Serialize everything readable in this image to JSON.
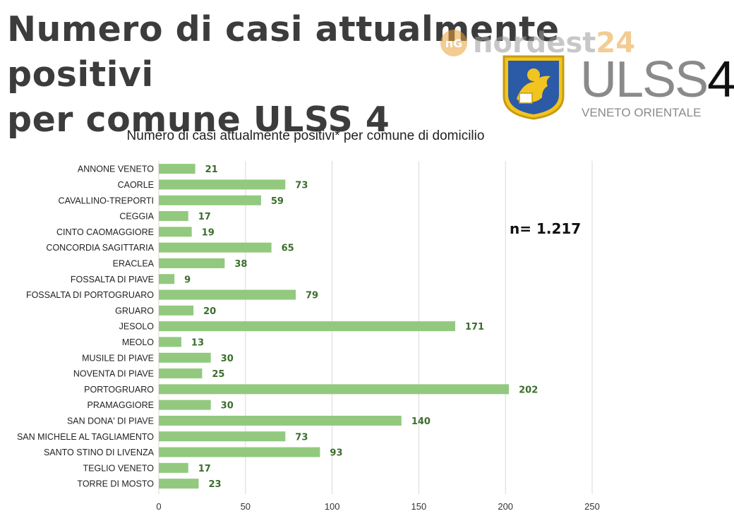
{
  "header": {
    "title_line1": "Numero di casi attualmente positivi",
    "title_line2": "per comune ULSS 4"
  },
  "watermark": {
    "icon": "nordest-logo-icon",
    "text": "nordest",
    "number": "24"
  },
  "logo": {
    "name": "ULSS",
    "number": "4",
    "subtitle": "VENETO ORIENTALE",
    "icon": "lion-of-saint-mark-shield"
  },
  "colors": {
    "bar": "#92c97f",
    "value_label": "#3b6e2c",
    "grid": "#d9d9d9",
    "title": "#3c3c3c"
  },
  "chart_data": {
    "type": "bar",
    "orientation": "horizontal",
    "title": "Numero di casi attualmente positivi* per comune di domicilio",
    "annotation": "n= 1.217",
    "xlim": [
      0,
      250
    ],
    "xticks": [
      0,
      50,
      100,
      150,
      200,
      250
    ],
    "grid": true,
    "categories": [
      "ANNONE VENETO",
      "CAORLE",
      "CAVALLINO-TREPORTI",
      "CEGGIA",
      "CINTO CAOMAGGIORE",
      "CONCORDIA SAGITTARIA",
      "ERACLEA",
      "FOSSALTA DI PIAVE",
      "FOSSALTA DI PORTOGRUARO",
      "GRUARO",
      "JESOLO",
      "MEOLO",
      "MUSILE DI PIAVE",
      "NOVENTA DI PIAVE",
      "PORTOGRUARO",
      "PRAMAGGIORE",
      "SAN DONA' DI PIAVE",
      "SAN MICHELE AL TAGLIAMENTO",
      "SANTO STINO DI LIVENZA",
      "TEGLIO VENETO",
      "TORRE DI MOSTO"
    ],
    "values": [
      21,
      73,
      59,
      17,
      19,
      65,
      38,
      9,
      79,
      20,
      171,
      13,
      30,
      25,
      202,
      30,
      140,
      73,
      93,
      17,
      23
    ]
  }
}
